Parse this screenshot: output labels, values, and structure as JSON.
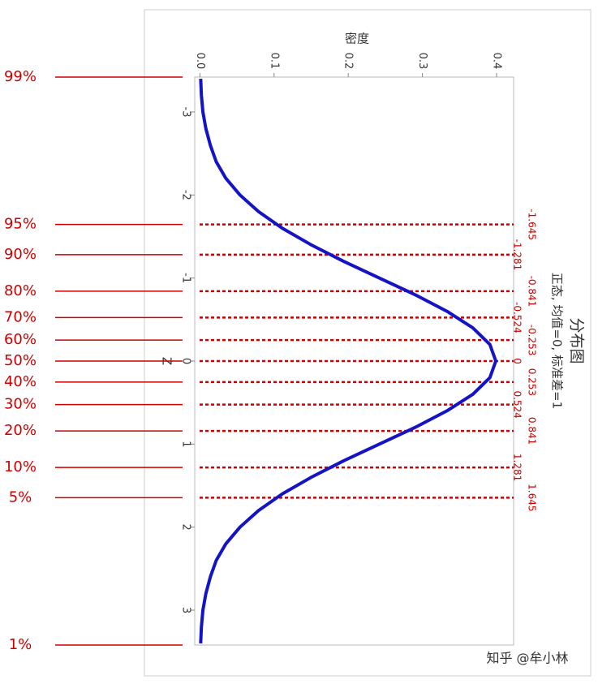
{
  "chart_data": {
    "type": "line",
    "title": "分布图",
    "subtitle": "正态, 均值=0, 标准差=1",
    "x_label": "Z",
    "y_label": "密度",
    "xlim": [
      -3.42,
      3.42
    ],
    "ylim": [
      -0.007,
      0.423
    ],
    "xticks": [
      -3,
      -2,
      -1,
      0,
      1,
      2,
      3
    ],
    "yticks": [
      {
        "value": 0,
        "label": "0.0"
      },
      0.1,
      0.2,
      0.3,
      0.4
    ],
    "series": [
      {
        "name": "正态",
        "color": "#1414c4",
        "x": [
          -3.4,
          -3.2,
          -3.0,
          -2.8,
          -2.6,
          -2.4,
          -2.2,
          -2.0,
          -1.8,
          -1.6,
          -1.4,
          -1.2,
          -1.0,
          -0.8,
          -0.6,
          -0.4,
          -0.2,
          0,
          0.2,
          0.4,
          0.6,
          0.8,
          1.0,
          1.2,
          1.4,
          1.6,
          1.8,
          2.0,
          2.2,
          2.4,
          2.6,
          2.8,
          3.0,
          3.2,
          3.4
        ],
        "values": [
          0.001,
          0.002,
          0.004,
          0.008,
          0.014,
          0.022,
          0.035,
          0.054,
          0.079,
          0.111,
          0.15,
          0.194,
          0.242,
          0.29,
          0.333,
          0.368,
          0.391,
          0.399,
          0.391,
          0.368,
          0.333,
          0.29,
          0.242,
          0.194,
          0.15,
          0.111,
          0.079,
          0.054,
          0.035,
          0.022,
          0.014,
          0.008,
          0.004,
          0.002,
          0.001
        ]
      }
    ],
    "quantiles": [
      {
        "z": -1.645,
        "label": "95%"
      },
      {
        "z": -1.281,
        "label": "90%"
      },
      {
        "z": -0.841,
        "label": "80%"
      },
      {
        "z": -0.524,
        "label": "70%"
      },
      {
        "z": -0.253,
        "label": "60%"
      },
      {
        "z": 0,
        "label": "50%"
      },
      {
        "z": 0.253,
        "label": "40%"
      },
      {
        "z": 0.524,
        "label": "30%"
      },
      {
        "z": 0.841,
        "label": "20%"
      },
      {
        "z": 1.281,
        "label": "10%"
      },
      {
        "z": 1.645,
        "label": "5%"
      }
    ],
    "top_label": "99%",
    "bottom_label": "1%",
    "quantile_color": "#cc0000",
    "watermark": "知乎 @牟小林"
  }
}
